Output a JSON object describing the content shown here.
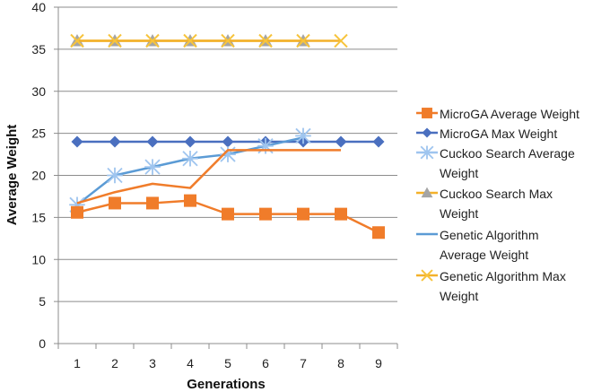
{
  "chart_data": {
    "type": "line",
    "title": "",
    "xlabel": "Generations",
    "ylabel": "Average Weight",
    "x": [
      1,
      2,
      3,
      4,
      5,
      6,
      7,
      8,
      9
    ],
    "xlim": [
      0.5,
      9.5
    ],
    "ylim": [
      0,
      40
    ],
    "yticks": [
      0,
      5,
      10,
      15,
      20,
      25,
      30,
      35,
      40
    ],
    "grid": "horizontal",
    "legend_position": "right",
    "series": [
      {
        "name": "MicroGA Average Weight",
        "color": "#f07c2a",
        "marker": "square",
        "line": true,
        "values": [
          15.6,
          16.7,
          16.7,
          17.0,
          15.4,
          15.4,
          15.4,
          15.4,
          13.2
        ]
      },
      {
        "name": "MicroGA Max Weight",
        "color": "#4a6fbf",
        "marker": "diamond",
        "line": true,
        "values": [
          24,
          24,
          24,
          24,
          24,
          24,
          24,
          24,
          24
        ]
      },
      {
        "name": "Cuckoo Search Average Weight",
        "color": "#9fc5ef",
        "marker": "asterisk",
        "line": false,
        "values": [
          16.5,
          20.0,
          21.0,
          22.0,
          22.5,
          23.5,
          24.7,
          null,
          null
        ]
      },
      {
        "name": "Cuckoo Search Max Weight",
        "color": "#a5a5a5",
        "line_color": "#f3b12a",
        "marker": "triangle",
        "line": true,
        "values": [
          36,
          36,
          36,
          36,
          36,
          36,
          36,
          null,
          null
        ]
      },
      {
        "name": "Genetic Algorithm Average Weight",
        "color": "#5b9bd5",
        "marker": "none",
        "line": true,
        "values": [
          16.5,
          20.0,
          21.0,
          22.0,
          22.5,
          23.5,
          24.5,
          null,
          null
        ]
      },
      {
        "name": "Genetic Algorithm Max Weight",
        "color": "#f7c43c",
        "line_color": "#f3b12a",
        "marker": "x",
        "line": true,
        "values": [
          36,
          36,
          36,
          36,
          36,
          36,
          36,
          36,
          null
        ]
      },
      {
        "name": "",
        "color": "#f07c2a",
        "marker": "none",
        "line": true,
        "values": [
          16.7,
          18.0,
          19.0,
          18.5,
          23.0,
          23.0,
          23.0,
          23.0,
          null
        ]
      }
    ]
  }
}
